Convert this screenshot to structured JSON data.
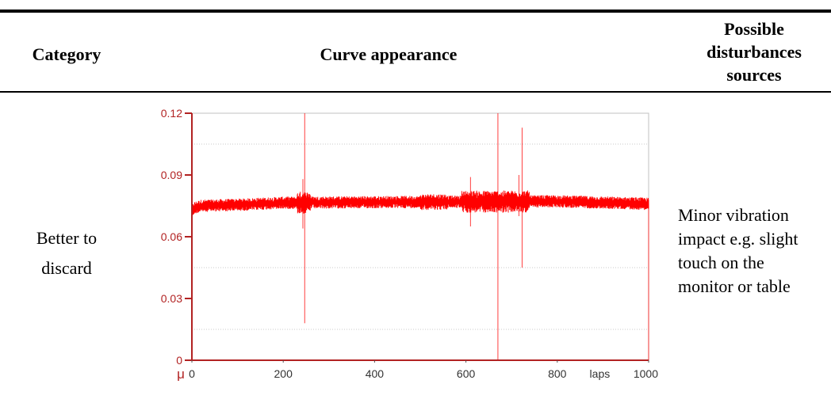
{
  "table": {
    "headers": {
      "category": "Category",
      "curve": "Curve appearance",
      "sources_lines": [
        "Possible",
        "disturbances",
        "sources"
      ]
    },
    "row": {
      "category_lines": [
        "Better to",
        "discard"
      ],
      "sources_lines": [
        "Minor vibration",
        "impact e.g. slight",
        "touch on the",
        "monitor or table"
      ]
    }
  },
  "chart_data": {
    "type": "line",
    "title": "",
    "ylabel": "μ",
    "xlabel": "laps",
    "xlim": [
      0,
      1000
    ],
    "ylim": [
      0,
      0.12
    ],
    "x_ticks": [
      "0",
      "200",
      "400",
      "600",
      "800",
      "1000"
    ],
    "y_ticks": [
      "0",
      "0.03",
      "0.06",
      "0.09",
      "0.12"
    ],
    "grid": "horizontal dashed",
    "colors": {
      "series": "#ff0000",
      "axis": "#b22222",
      "grid": "#c8c8c8"
    },
    "series": [
      {
        "baseline": {
          "x": [
            0,
            5,
            20,
            100,
            200,
            400,
            600,
            800,
            1000
          ],
          "y": [
            0.072,
            0.074,
            0.075,
            0.0755,
            0.0765,
            0.0768,
            0.077,
            0.0772,
            0.076
          ]
        },
        "noise_band": 0.003,
        "spikes": [
          {
            "x": 243,
            "min": 0.064,
            "max": 0.088
          },
          {
            "x": 247,
            "min": 0.018,
            "max": 0.12
          },
          {
            "x": 610,
            "min": 0.065,
            "max": 0.089
          },
          {
            "x": 670,
            "min": 0.0,
            "max": 0.12
          },
          {
            "x": 716,
            "min": 0.07,
            "max": 0.09
          },
          {
            "x": 723,
            "min": 0.045,
            "max": 0.113
          },
          {
            "x": 1000,
            "min": 0.0,
            "max": 0.076
          }
        ]
      }
    ]
  }
}
